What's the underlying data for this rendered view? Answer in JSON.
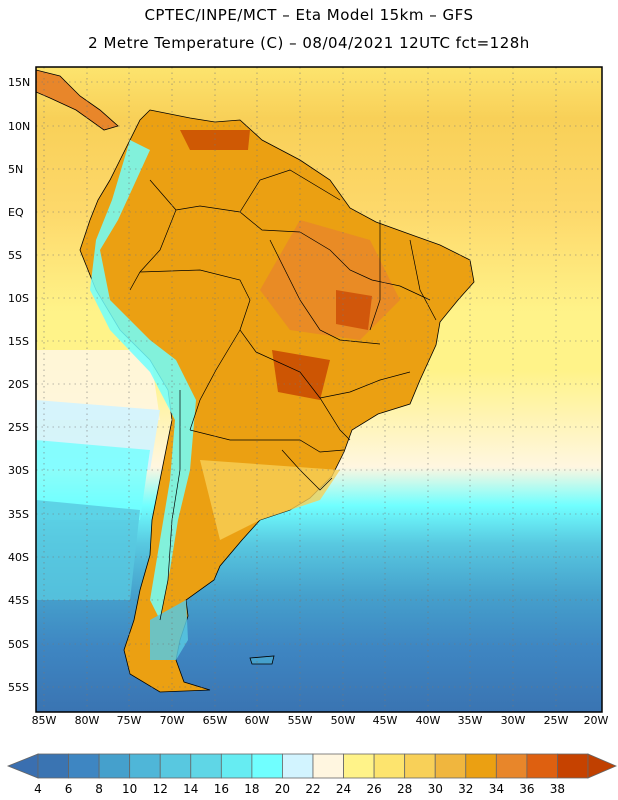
{
  "header": {
    "line1": "CPTEC/INPE/MCT –  Eta Model 15km – GFS",
    "line2": "2 Metre Temperature (C) – 08/04/2021 12UTC fct=128h"
  },
  "map": {
    "lat_labels": [
      "15N",
      "10N",
      "5N",
      "EQ",
      "5S",
      "10S",
      "15S",
      "20S",
      "25S",
      "30S",
      "35S",
      "40S",
      "45S",
      "50S",
      "55S"
    ],
    "lon_labels": [
      "85W",
      "80W",
      "75W",
      "70W",
      "65W",
      "60W",
      "55W",
      "50W",
      "45W",
      "40W",
      "35W",
      "30W",
      "25W",
      "20W"
    ]
  },
  "colorbar": {
    "labels": [
      "4",
      "6",
      "8",
      "10",
      "12",
      "14",
      "16",
      "18",
      "20",
      "22",
      "24",
      "26",
      "28",
      "30",
      "32",
      "34",
      "36",
      "38"
    ],
    "colors": [
      "#3a74b2",
      "#3e86c2",
      "#45a0cc",
      "#4fb6d8",
      "#58c8e0",
      "#5fd6e6",
      "#66ecf2",
      "#70ffff",
      "#d2f4ff",
      "#fff6e0",
      "#fff389",
      "#fde46e",
      "#f8d058",
      "#f0b63e",
      "#eba012",
      "#e8862a",
      "#de6010",
      "#c64200"
    ],
    "low_color": "#3a6fb0",
    "high_color": "#c04000"
  }
}
